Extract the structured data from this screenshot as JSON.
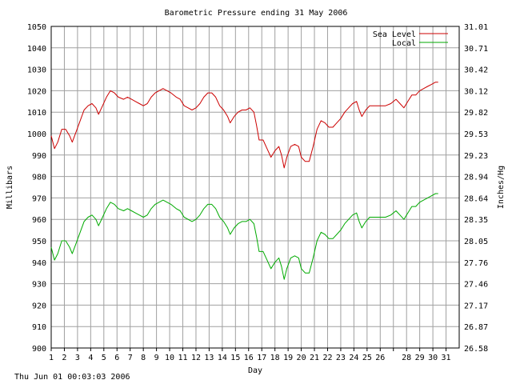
{
  "footer_timestamp": "Thu Jun 01 00:03:03 2006",
  "chart_data": {
    "type": "line",
    "title": "Barometric Pressure ending 31 May 2006",
    "xlabel": "Day",
    "ylabel": "Millibars",
    "ylabel_right": "Inches/Hg",
    "xlim": [
      1,
      32
    ],
    "ylim": [
      900,
      1050
    ],
    "grid": true,
    "legend_position": "top-right",
    "x_ticks": [
      {
        "x": 1,
        "label": "1"
      },
      {
        "x": 2,
        "label": "2"
      },
      {
        "x": 3,
        "label": "3"
      },
      {
        "x": 4,
        "label": "4"
      },
      {
        "x": 5,
        "label": "5"
      },
      {
        "x": 6,
        "label": "6"
      },
      {
        "x": 7,
        "label": "7"
      },
      {
        "x": 8,
        "label": "8"
      },
      {
        "x": 9,
        "label": "9"
      },
      {
        "x": 10,
        "label": "10"
      },
      {
        "x": 11,
        "label": "11"
      },
      {
        "x": 12,
        "label": "12"
      },
      {
        "x": 13,
        "label": "13"
      },
      {
        "x": 14,
        "label": "14"
      },
      {
        "x": 15,
        "label": "15"
      },
      {
        "x": 16,
        "label": "16"
      },
      {
        "x": 17,
        "label": "17"
      },
      {
        "x": 18,
        "label": "18"
      },
      {
        "x": 19,
        "label": "19"
      },
      {
        "x": 20,
        "label": "20"
      },
      {
        "x": 21,
        "label": "21"
      },
      {
        "x": 22,
        "label": "22"
      },
      {
        "x": 23,
        "label": "23"
      },
      {
        "x": 24,
        "label": "24"
      },
      {
        "x": 25,
        "label": "25"
      },
      {
        "x": 26,
        "label": "26"
      },
      {
        "x": 27,
        "label": ""
      },
      {
        "x": 28,
        "label": "28"
      },
      {
        "x": 29,
        "label": "29"
      },
      {
        "x": 30,
        "label": "30"
      },
      {
        "x": 31,
        "label": "31"
      }
    ],
    "y_ticks_left": [
      "900",
      "910",
      "920",
      "930",
      "940",
      "950",
      "960",
      "970",
      "980",
      "990",
      "1000",
      "1010",
      "1020",
      "1030",
      "1040",
      "1050"
    ],
    "y_ticks_right": [
      "26.58",
      "26.87",
      "27.17",
      "27.46",
      "27.76",
      "28.05",
      "28.35",
      "28.64",
      "28.94",
      "29.23",
      "29.53",
      "29.82",
      "30.12",
      "30.42",
      "30.71",
      "31.01"
    ],
    "series": [
      {
        "name": "Sea Level",
        "color": "#cc0000",
        "points": [
          [
            1.0,
            999
          ],
          [
            1.25,
            993
          ],
          [
            1.5,
            996
          ],
          [
            1.8,
            1002
          ],
          [
            2.1,
            1002
          ],
          [
            2.4,
            999
          ],
          [
            2.6,
            996
          ],
          [
            2.9,
            1001
          ],
          [
            3.2,
            1006
          ],
          [
            3.5,
            1011
          ],
          [
            3.8,
            1013
          ],
          [
            4.1,
            1014
          ],
          [
            4.4,
            1012
          ],
          [
            4.6,
            1009
          ],
          [
            4.9,
            1013
          ],
          [
            5.2,
            1017
          ],
          [
            5.5,
            1020
          ],
          [
            5.8,
            1019
          ],
          [
            6.1,
            1017
          ],
          [
            6.5,
            1016
          ],
          [
            6.8,
            1017
          ],
          [
            7.1,
            1016
          ],
          [
            7.4,
            1015
          ],
          [
            7.7,
            1014
          ],
          [
            8.0,
            1013
          ],
          [
            8.3,
            1014
          ],
          [
            8.6,
            1017
          ],
          [
            8.9,
            1019
          ],
          [
            9.2,
            1020
          ],
          [
            9.5,
            1021
          ],
          [
            9.8,
            1020
          ],
          [
            10.1,
            1019
          ],
          [
            10.5,
            1017
          ],
          [
            10.8,
            1016
          ],
          [
            11.1,
            1013
          ],
          [
            11.4,
            1012
          ],
          [
            11.7,
            1011
          ],
          [
            12.0,
            1012
          ],
          [
            12.3,
            1014
          ],
          [
            12.6,
            1017
          ],
          [
            12.9,
            1019
          ],
          [
            13.2,
            1019
          ],
          [
            13.5,
            1017
          ],
          [
            13.8,
            1013
          ],
          [
            14.1,
            1011
          ],
          [
            14.4,
            1008
          ],
          [
            14.6,
            1005
          ],
          [
            14.9,
            1008
          ],
          [
            15.2,
            1010
          ],
          [
            15.5,
            1011
          ],
          [
            15.8,
            1011
          ],
          [
            16.1,
            1012
          ],
          [
            16.4,
            1010
          ],
          [
            16.6,
            1004
          ],
          [
            16.8,
            997
          ],
          [
            17.1,
            997
          ],
          [
            17.4,
            993
          ],
          [
            17.7,
            989
          ],
          [
            18.0,
            992
          ],
          [
            18.3,
            994
          ],
          [
            18.5,
            990
          ],
          [
            18.7,
            984
          ],
          [
            18.9,
            989
          ],
          [
            19.2,
            994
          ],
          [
            19.5,
            995
          ],
          [
            19.8,
            994
          ],
          [
            20.0,
            989
          ],
          [
            20.3,
            987
          ],
          [
            20.6,
            987
          ],
          [
            20.9,
            994
          ],
          [
            21.2,
            1002
          ],
          [
            21.5,
            1006
          ],
          [
            21.8,
            1005
          ],
          [
            22.1,
            1003
          ],
          [
            22.4,
            1003
          ],
          [
            22.7,
            1005
          ],
          [
            23.0,
            1007
          ],
          [
            23.3,
            1010
          ],
          [
            23.6,
            1012
          ],
          [
            23.9,
            1014
          ],
          [
            24.2,
            1015
          ],
          [
            24.4,
            1011
          ],
          [
            24.6,
            1008
          ],
          [
            24.9,
            1011
          ],
          [
            25.2,
            1013
          ],
          [
            25.6,
            1013
          ],
          [
            26.0,
            1013
          ],
          [
            26.4,
            1013
          ],
          [
            26.8,
            1014
          ],
          [
            27.2,
            1016
          ],
          [
            27.5,
            1014
          ],
          [
            27.8,
            1012
          ],
          [
            28.1,
            1015
          ],
          [
            28.4,
            1018
          ],
          [
            28.7,
            1018
          ],
          [
            29.0,
            1020
          ],
          [
            29.3,
            1021
          ],
          [
            29.6,
            1022
          ],
          [
            29.9,
            1023
          ],
          [
            30.2,
            1024
          ],
          [
            30.4,
            1024
          ]
        ]
      },
      {
        "name": "Local",
        "color": "#00aa00",
        "points": [
          [
            1.0,
            947
          ],
          [
            1.25,
            941
          ],
          [
            1.5,
            944
          ],
          [
            1.8,
            950
          ],
          [
            2.1,
            950
          ],
          [
            2.4,
            947
          ],
          [
            2.6,
            944
          ],
          [
            2.9,
            949
          ],
          [
            3.2,
            954
          ],
          [
            3.5,
            959
          ],
          [
            3.8,
            961
          ],
          [
            4.1,
            962
          ],
          [
            4.4,
            960
          ],
          [
            4.6,
            957
          ],
          [
            4.9,
            961
          ],
          [
            5.2,
            965
          ],
          [
            5.5,
            968
          ],
          [
            5.8,
            967
          ],
          [
            6.1,
            965
          ],
          [
            6.5,
            964
          ],
          [
            6.8,
            965
          ],
          [
            7.1,
            964
          ],
          [
            7.4,
            963
          ],
          [
            7.7,
            962
          ],
          [
            8.0,
            961
          ],
          [
            8.3,
            962
          ],
          [
            8.6,
            965
          ],
          [
            8.9,
            967
          ],
          [
            9.2,
            968
          ],
          [
            9.5,
            969
          ],
          [
            9.8,
            968
          ],
          [
            10.1,
            967
          ],
          [
            10.5,
            965
          ],
          [
            10.8,
            964
          ],
          [
            11.1,
            961
          ],
          [
            11.4,
            960
          ],
          [
            11.7,
            959
          ],
          [
            12.0,
            960
          ],
          [
            12.3,
            962
          ],
          [
            12.6,
            965
          ],
          [
            12.9,
            967
          ],
          [
            13.2,
            967
          ],
          [
            13.5,
            965
          ],
          [
            13.8,
            961
          ],
          [
            14.1,
            959
          ],
          [
            14.4,
            956
          ],
          [
            14.6,
            953
          ],
          [
            14.9,
            956
          ],
          [
            15.2,
            958
          ],
          [
            15.5,
            959
          ],
          [
            15.8,
            959
          ],
          [
            16.1,
            960
          ],
          [
            16.4,
            958
          ],
          [
            16.6,
            952
          ],
          [
            16.8,
            945
          ],
          [
            17.1,
            945
          ],
          [
            17.4,
            941
          ],
          [
            17.7,
            937
          ],
          [
            18.0,
            940
          ],
          [
            18.3,
            942
          ],
          [
            18.5,
            938
          ],
          [
            18.7,
            932
          ],
          [
            18.9,
            937
          ],
          [
            19.2,
            942
          ],
          [
            19.5,
            943
          ],
          [
            19.8,
            942
          ],
          [
            20.0,
            937
          ],
          [
            20.3,
            935
          ],
          [
            20.6,
            935
          ],
          [
            20.9,
            942
          ],
          [
            21.2,
            950
          ],
          [
            21.5,
            954
          ],
          [
            21.8,
            953
          ],
          [
            22.1,
            951
          ],
          [
            22.4,
            951
          ],
          [
            22.7,
            953
          ],
          [
            23.0,
            955
          ],
          [
            23.3,
            958
          ],
          [
            23.6,
            960
          ],
          [
            23.9,
            962
          ],
          [
            24.2,
            963
          ],
          [
            24.4,
            959
          ],
          [
            24.6,
            956
          ],
          [
            24.9,
            959
          ],
          [
            25.2,
            961
          ],
          [
            25.6,
            961
          ],
          [
            26.0,
            961
          ],
          [
            26.4,
            961
          ],
          [
            26.8,
            962
          ],
          [
            27.2,
            964
          ],
          [
            27.5,
            962
          ],
          [
            27.8,
            960
          ],
          [
            28.1,
            963
          ],
          [
            28.4,
            966
          ],
          [
            28.7,
            966
          ],
          [
            29.0,
            968
          ],
          [
            29.3,
            969
          ],
          [
            29.6,
            970
          ],
          [
            29.9,
            971
          ],
          [
            30.2,
            972
          ],
          [
            30.4,
            972
          ]
        ]
      }
    ]
  }
}
